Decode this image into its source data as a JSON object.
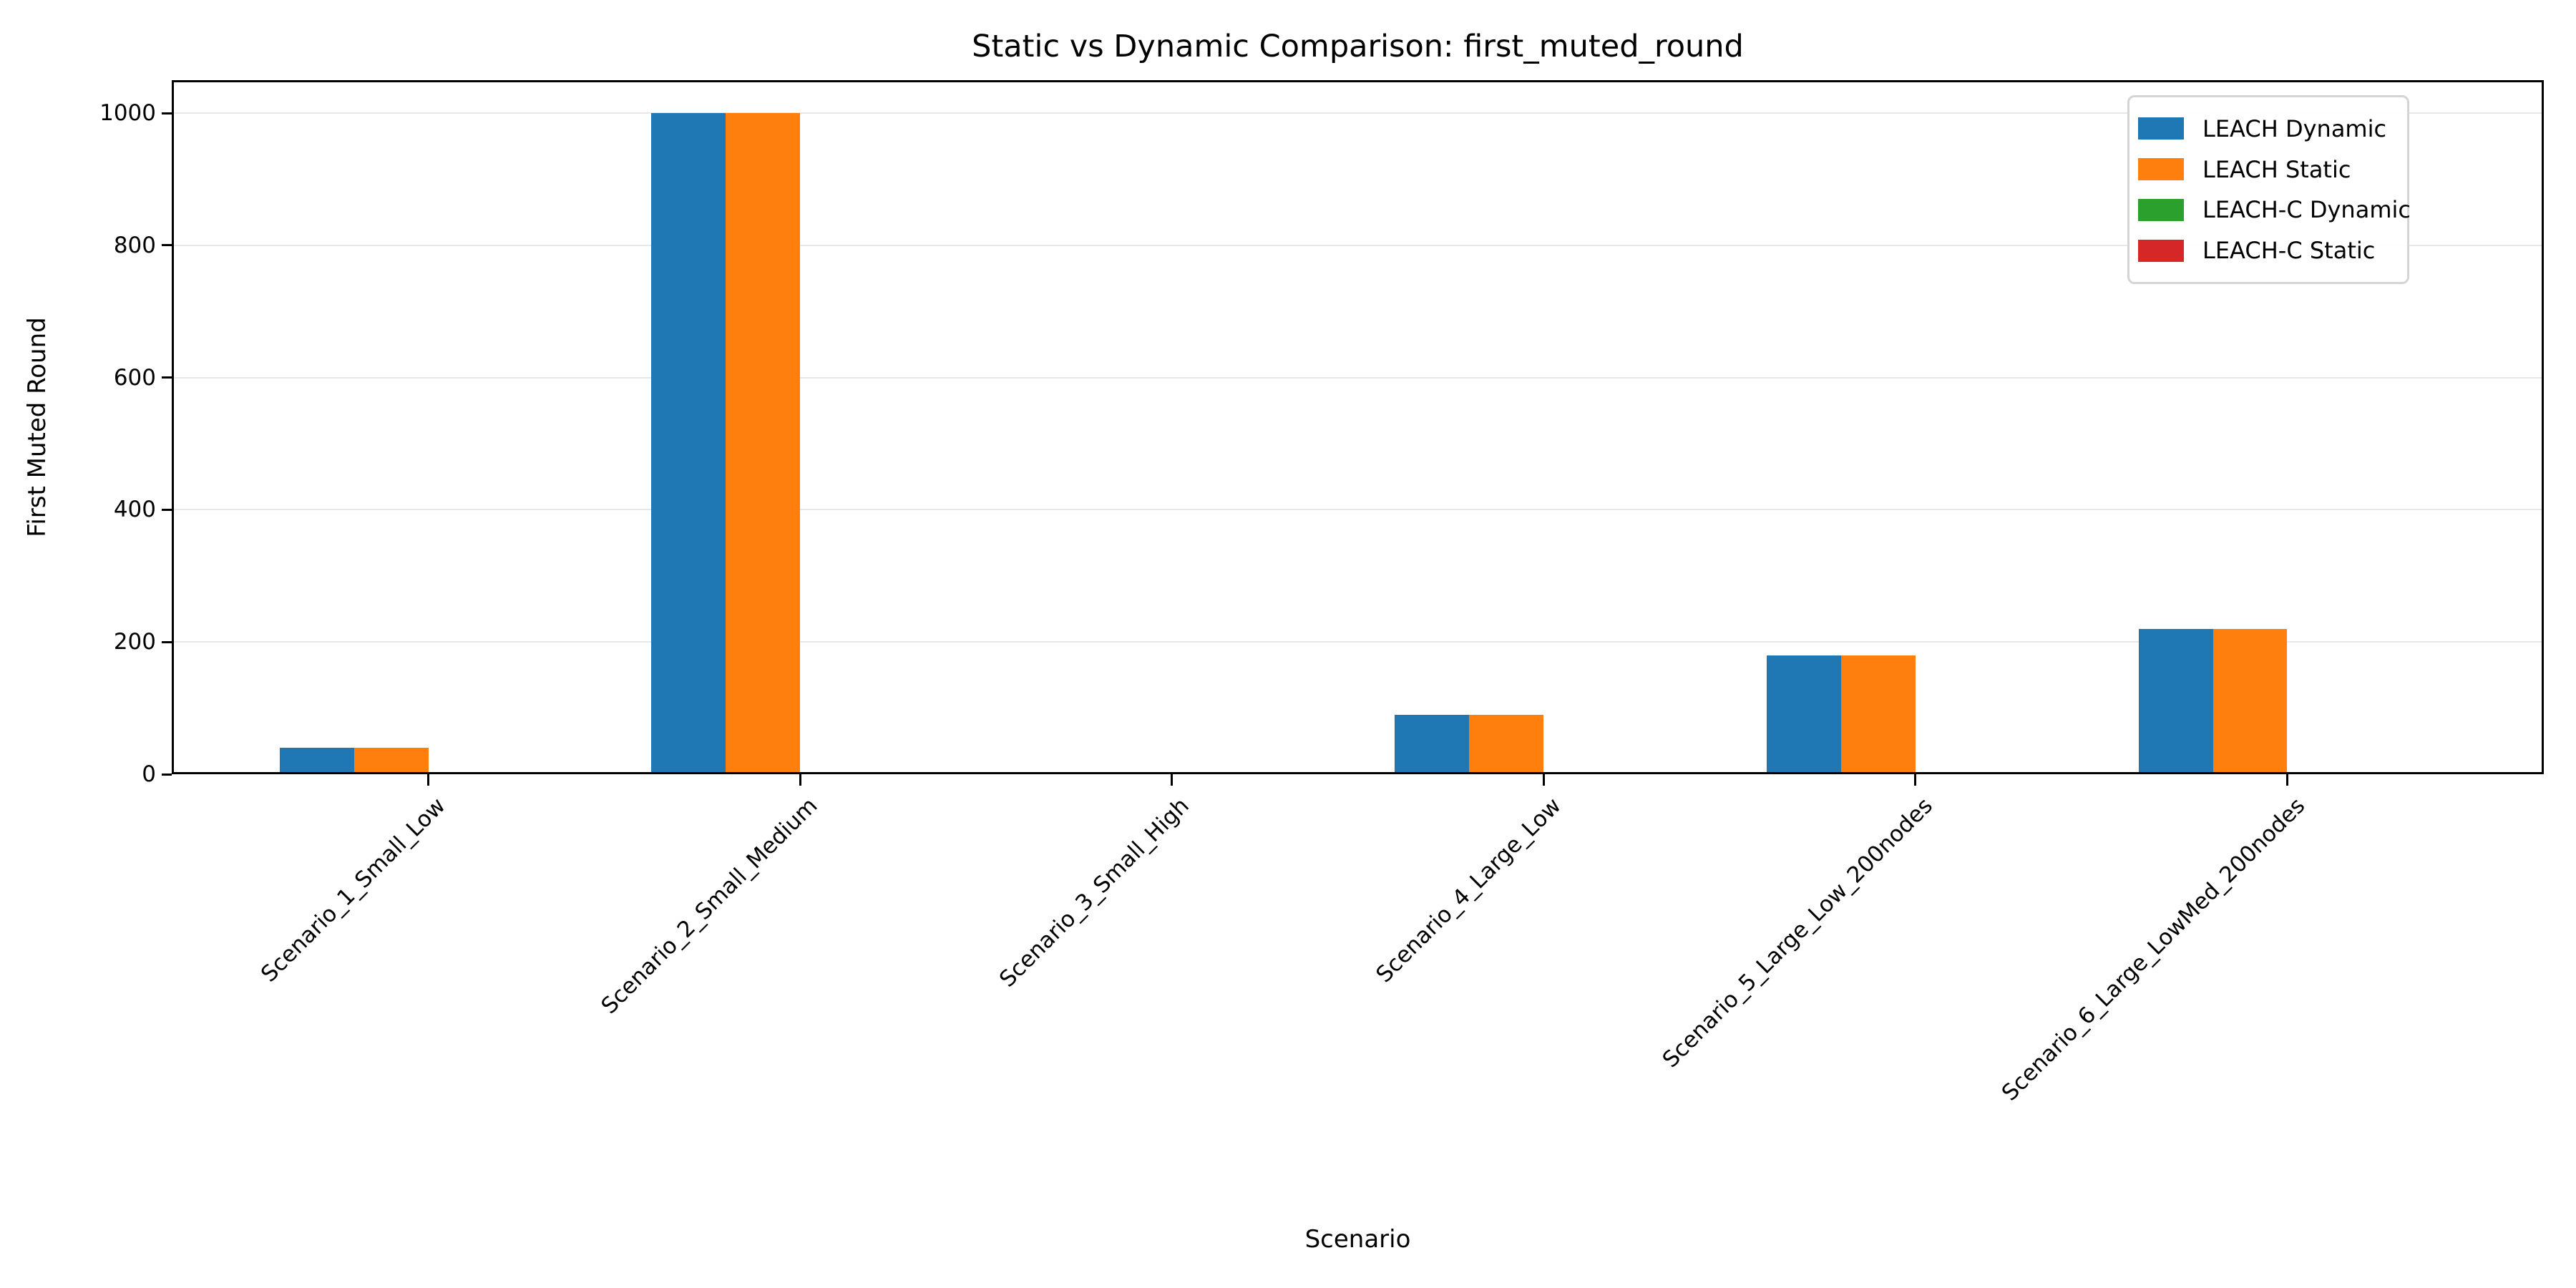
{
  "chart_data": {
    "type": "bar",
    "title": "Static vs Dynamic Comparison: first_muted_round",
    "xlabel": "Scenario",
    "ylabel": "First Muted Round",
    "categories": [
      "Scenario_1_Small_Low",
      "Scenario_2_Small_Medium",
      "Scenario_3_Small_High",
      "Scenario_4_Large_Low",
      "Scenario_5_Large_Low_200nodes",
      "Scenario_6_Large_LowMed_200nodes"
    ],
    "series": [
      {
        "name": "LEACH Dynamic",
        "color": "#1f77b4",
        "values": [
          40,
          1000,
          0,
          90,
          180,
          220
        ]
      },
      {
        "name": "LEACH Static",
        "color": "#ff7f0e",
        "values": [
          40,
          1000,
          0,
          90,
          180,
          220
        ]
      },
      {
        "name": "LEACH-C Dynamic",
        "color": "#2ca02c",
        "values": [
          0,
          0,
          0,
          0,
          0,
          0
        ]
      },
      {
        "name": "LEACH-C Static",
        "color": "#d62728",
        "values": [
          0,
          0,
          0,
          0,
          0,
          0
        ]
      }
    ],
    "yticks": [
      0,
      200,
      400,
      600,
      800,
      1000
    ],
    "ylim": [
      0,
      1050
    ],
    "grid": "horizontal",
    "grid_color": "#e8e8e8",
    "axis_color": "#000000",
    "legend_position": "upper right"
  }
}
